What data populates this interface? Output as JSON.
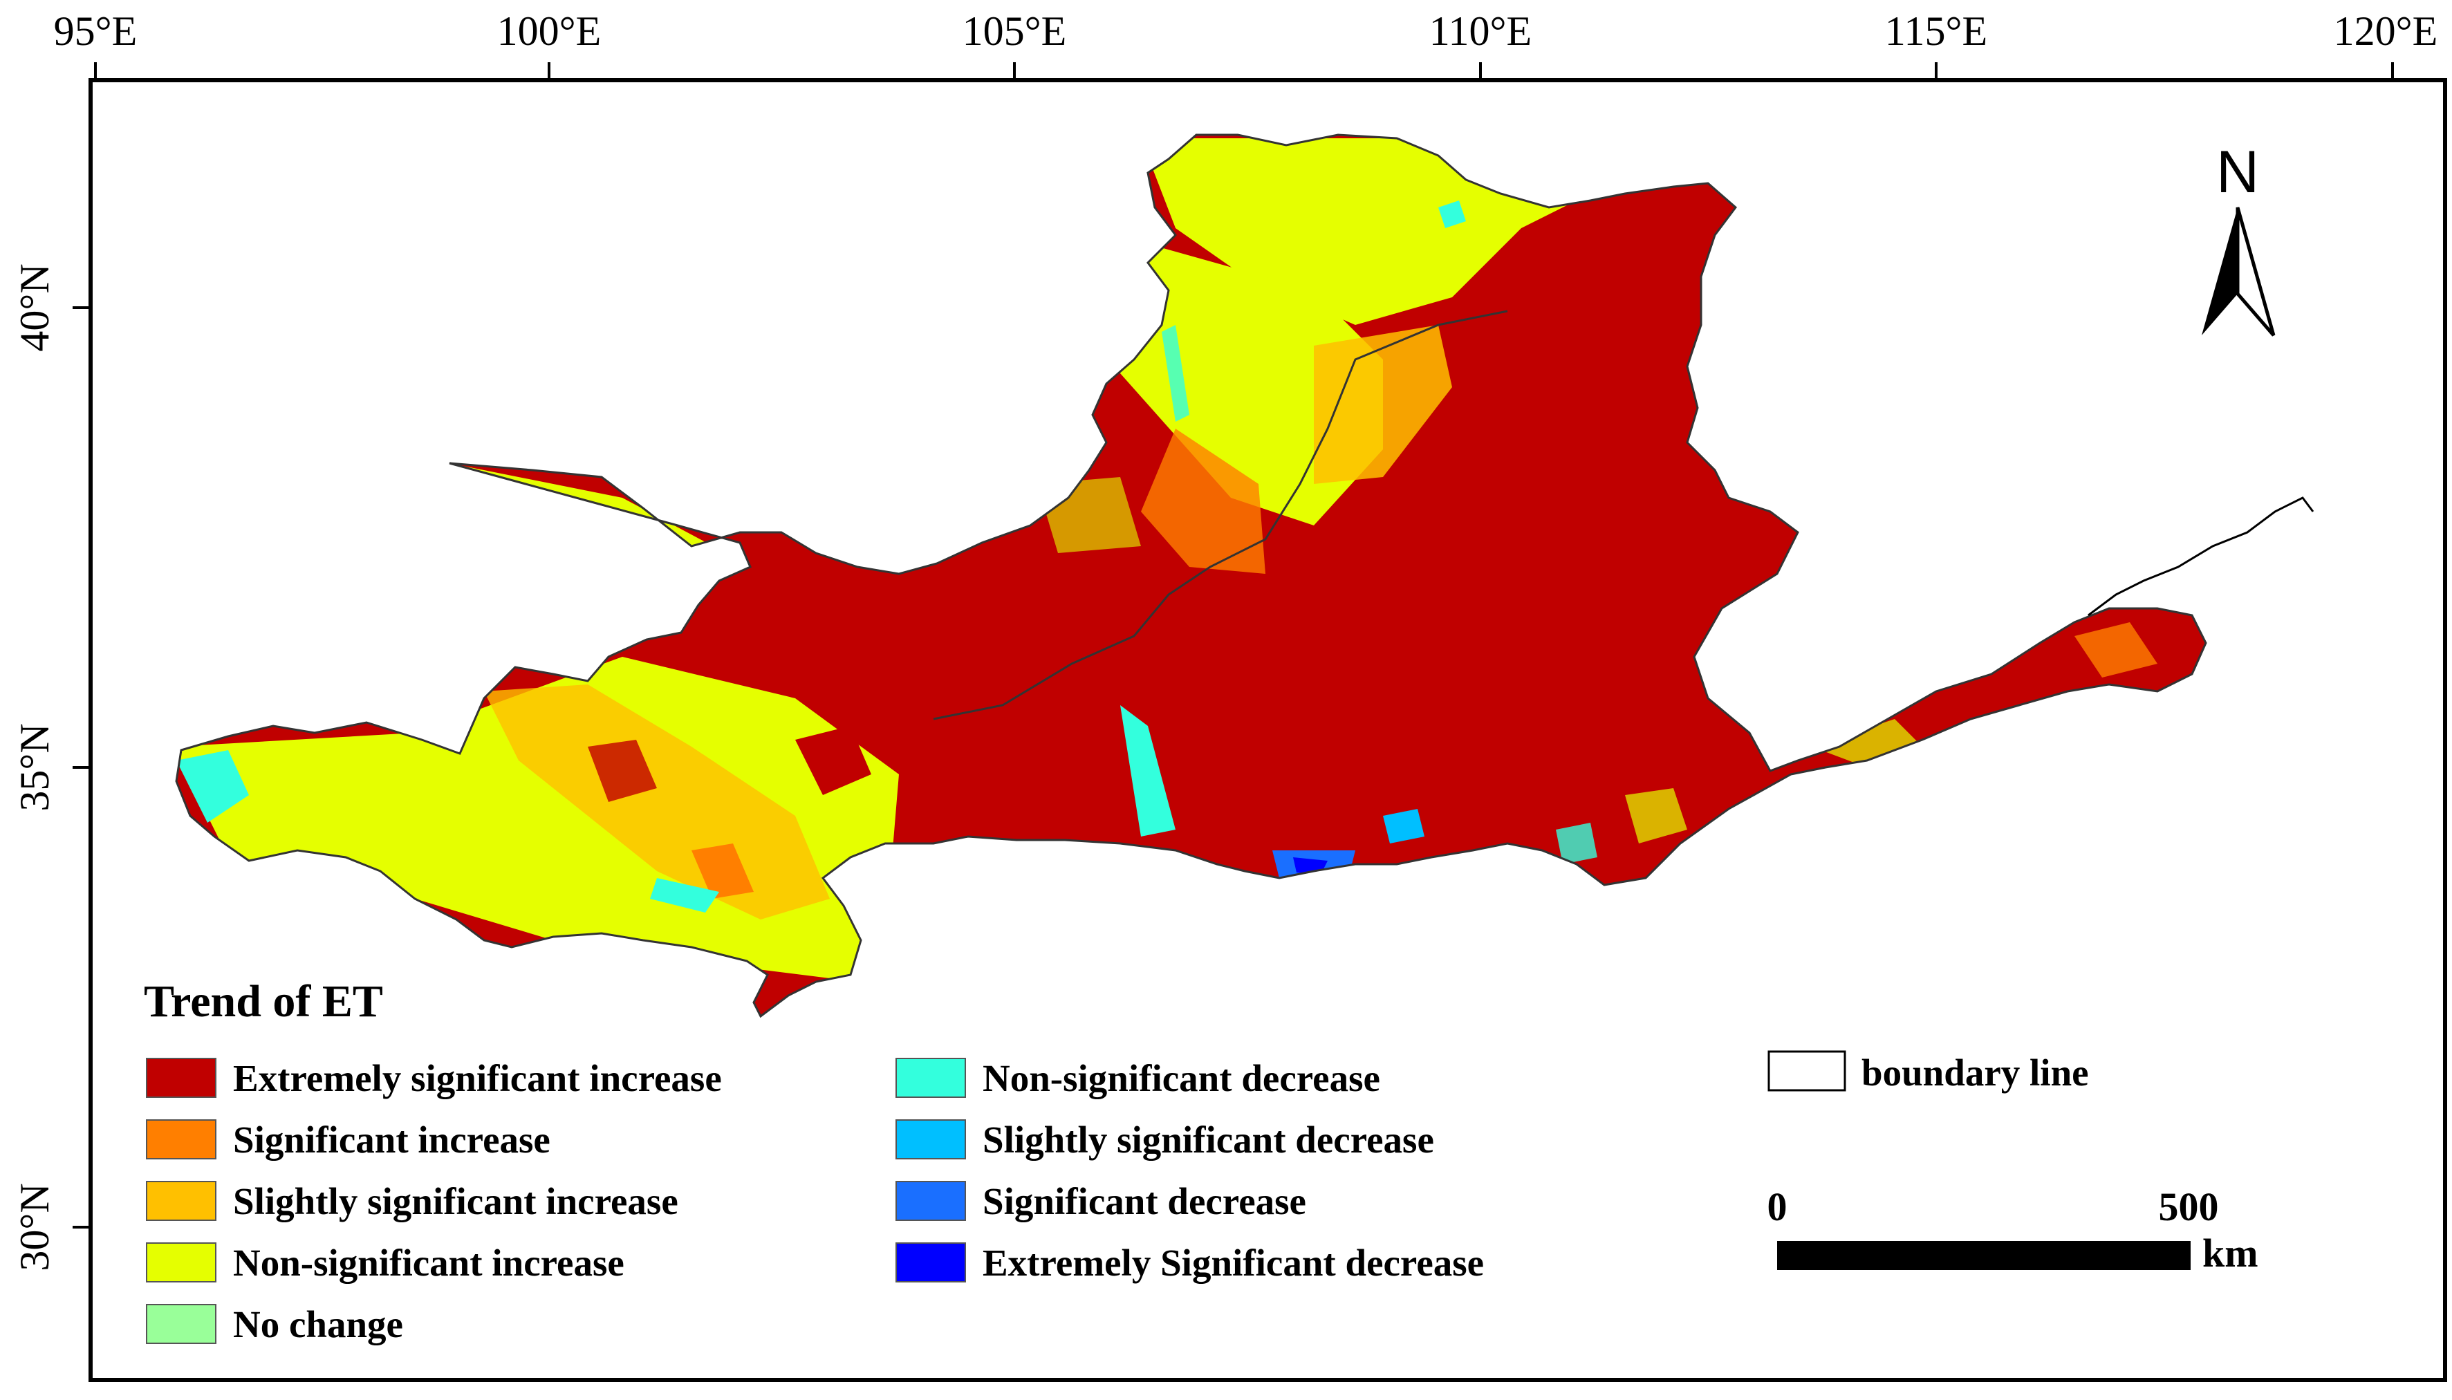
{
  "map": {
    "lon_ticks": [
      "95°E",
      "100°E",
      "105°E",
      "110°E",
      "115°E",
      "120°E"
    ],
    "lat_ticks": [
      "40°N",
      "35°N",
      "30°N"
    ],
    "north_label": "N"
  },
  "legend": {
    "title": "Trend of  ET",
    "items": [
      {
        "label": "Extremely significant increase",
        "color": "#c00000"
      },
      {
        "label": "Significant increase",
        "color": "#ff7f00"
      },
      {
        "label": "Slightly significant increase",
        "color": "#ffc000"
      },
      {
        "label": "Non-significant increase",
        "color": "#e5ff00"
      },
      {
        "label": "No change",
        "color": "#99ff99"
      },
      {
        "label": "Non-significant decrease",
        "color": "#33ffdd"
      },
      {
        "label": "Slightly significant decrease",
        "color": "#00bfff"
      },
      {
        "label": "Significant decrease",
        "color": "#1a6fff"
      },
      {
        "label": "Extremely Significant decrease",
        "color": "#0000ff"
      }
    ],
    "boundary_label": "boundary line"
  },
  "scale_bar": {
    "start_label": "0",
    "end_label": "500",
    "unit": "km"
  }
}
